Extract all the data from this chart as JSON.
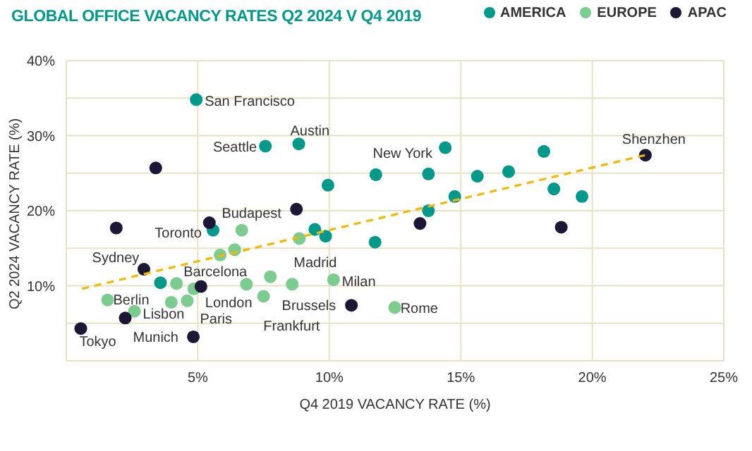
{
  "chart_data": {
    "type": "scatter",
    "title": "GLOBAL OFFICE VACANCY RATES Q2 2024 V Q4 2019",
    "xlabel": "Q4 2019 VACANCY RATE (%)",
    "ylabel": "Q2 2024 VACANCY RATE (%)",
    "xlim": [
      0,
      25
    ],
    "xticks": [
      {
        "value": 0,
        "label": null
      },
      {
        "value": 5,
        "label": "5%"
      },
      {
        "value": 10,
        "label": "10%"
      },
      {
        "value": 15,
        "label": "15%"
      },
      {
        "value": 20,
        "label": "20%"
      },
      {
        "value": 25,
        "label": "25%"
      }
    ],
    "ylim": [
      0,
      40
    ],
    "yticks": [
      {
        "value": 0,
        "label": null
      },
      {
        "value": 5,
        "label": null
      },
      {
        "value": 10,
        "label": "10%"
      },
      {
        "value": 15,
        "label": null
      },
      {
        "value": 20,
        "label": "20%"
      },
      {
        "value": 25,
        "label": null
      },
      {
        "value": 30,
        "label": "30%"
      },
      {
        "value": 35,
        "label": null
      },
      {
        "value": 40,
        "label": "40%"
      }
    ],
    "grid": true,
    "legend": "top right",
    "marker": "circle",
    "series": [
      {
        "name": "AMERICA",
        "color": "#00998a",
        "x": [
          4.94,
          7.57,
          8.84,
          9.95,
          11.77,
          5.58,
          9.45,
          9.86,
          11.74,
          3.58,
          14.41,
          13.77,
          15.63,
          16.82,
          18.16,
          18.54,
          19.61,
          14.77,
          13.77
        ],
        "values": [
          34.8,
          28.6,
          28.9,
          23.4,
          24.8,
          17.4,
          17.5,
          16.6,
          15.8,
          10.4,
          28.4,
          24.9,
          24.6,
          25.2,
          27.9,
          22.9,
          21.9,
          21.9,
          20.0
        ]
      },
      {
        "name": "EUROPE",
        "color": "#7dcc8f",
        "x": [
          6.67,
          8.86,
          6.4,
          5.85,
          8.59,
          7.76,
          4.19,
          10.16,
          6.85,
          7.5,
          4.85,
          4.6,
          3.99,
          1.57,
          2.59,
          12.49
        ],
        "values": [
          17.4,
          16.3,
          14.8,
          14.1,
          10.2,
          11.2,
          10.3,
          10.8,
          10.2,
          8.6,
          9.6,
          8.0,
          7.8,
          8.1,
          6.6,
          7.1
        ]
      },
      {
        "name": "APAC",
        "color": "#1d1736",
        "x": [
          3.4,
          1.9,
          5.44,
          8.75,
          2.95,
          5.12,
          0.55,
          2.24,
          4.83,
          10.84,
          13.45,
          18.82,
          22.02
        ],
        "values": [
          25.7,
          17.7,
          18.4,
          20.2,
          12.2,
          9.9,
          4.3,
          5.7,
          3.2,
          7.4,
          18.3,
          17.8,
          27.4
        ]
      },
      {
        "type": "line",
        "color": "#f5b800",
        "line_style": "dashed",
        "marker": "none",
        "x": [
          0.6,
          22.0
        ],
        "values": [
          9.6,
          27.4
        ]
      }
    ],
    "annotations": [
      {
        "text": "San Francisco",
        "x": 4.94,
        "y": 34.75
      },
      {
        "text": "Austin",
        "x": 8.84,
        "y": 28.9
      },
      {
        "text": "Seattle",
        "x": 7.57,
        "y": 28.6
      },
      {
        "text": "New York",
        "x": 11.77,
        "y": 24.75
      },
      {
        "text": "Shenzhen",
        "x": 22.02,
        "y": 27.4
      },
      {
        "text": "Budapest",
        "x": 6.67,
        "y": 17.4
      },
      {
        "text": "Toronto",
        "x": 5.58,
        "y": 17.4
      },
      {
        "text": "Sydney",
        "x": 2.95,
        "y": 12.2
      },
      {
        "text": "Barcelona",
        "x": 4.19,
        "y": 10.3
      },
      {
        "text": "Madrid",
        "x": 8.59,
        "y": 10.2
      },
      {
        "text": "Milan",
        "x": 10.16,
        "y": 10.75
      },
      {
        "text": "Berlin",
        "x": 1.57,
        "y": 8.1
      },
      {
        "text": "London",
        "x": 4.85,
        "y": 9.6
      },
      {
        "text": "Lisbon",
        "x": 2.59,
        "y": 6.6
      },
      {
        "text": "Paris",
        "x": 4.6,
        "y": 8.0
      },
      {
        "text": "Brussels",
        "x": 7.5,
        "y": 8.6
      },
      {
        "text": "Rome",
        "x": 12.49,
        "y": 7.1
      },
      {
        "text": "Frankfurt",
        "x": 6.85,
        "y": 10.2
      },
      {
        "text": "Tokyo",
        "x": 0.55,
        "y": 4.25
      },
      {
        "text": "Munich",
        "x": 3.99,
        "y": 7.75
      }
    ]
  }
}
